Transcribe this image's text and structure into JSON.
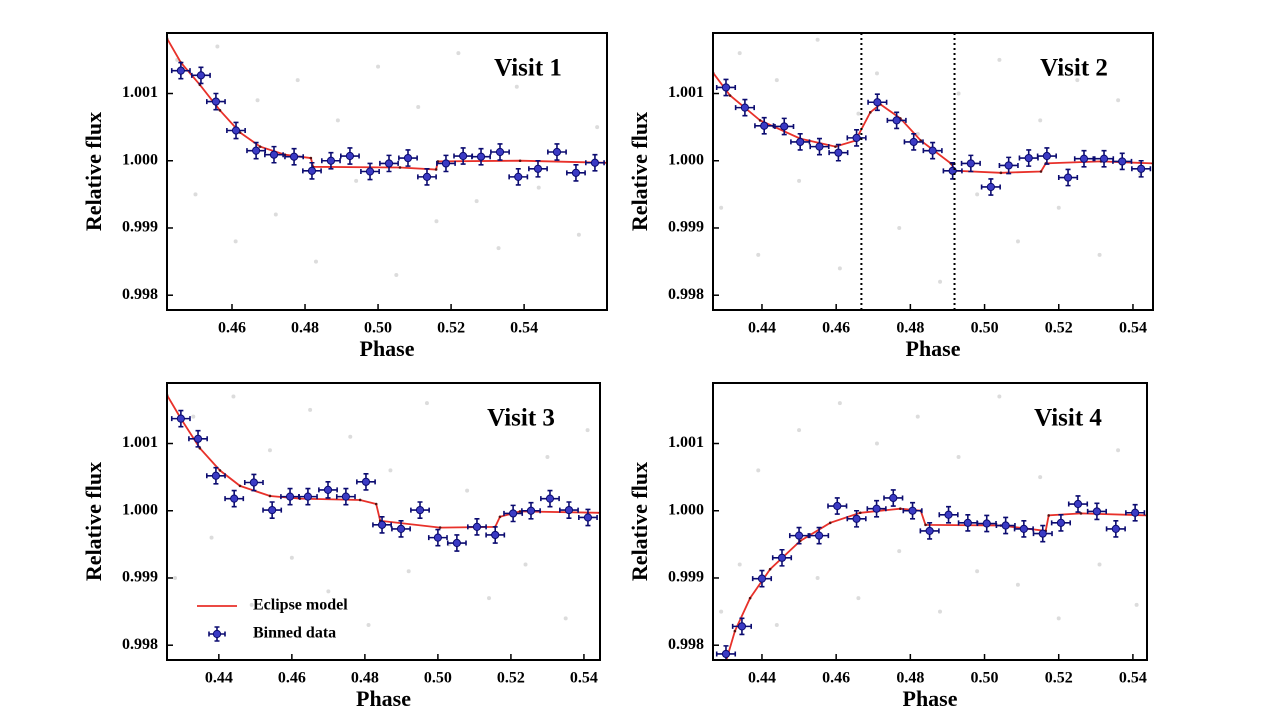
{
  "chart_data": [
    {
      "type": "errorbar",
      "title": "Visit 1",
      "xlabel": "Phase",
      "ylabel": "Relative flux",
      "xlim": [
        0.4422,
        0.5627
      ],
      "ylim": [
        0.99778,
        1.0019
      ],
      "xticks": [
        0.46,
        0.48,
        {
          "value": 0.5,
          "label": "0.50"
        },
        0.52,
        0.54
      ],
      "yticks": [
        0.998,
        0.999,
        {
          "value": 1.0,
          "label": "1.000"
        },
        1.001
      ],
      "raw": {
        "color": "#dcdcdc",
        "x": [
          0.445,
          0.45,
          0.456,
          0.461,
          0.467,
          0.472,
          0.478,
          0.483,
          0.489,
          0.494,
          0.5,
          0.505,
          0.511,
          0.516,
          0.522,
          0.527,
          0.533,
          0.538,
          0.544,
          0.549,
          0.555,
          0.56
        ],
        "values": [
          1.0015,
          0.9995,
          1.0017,
          0.9988,
          1.0009,
          0.9992,
          1.0012,
          0.9985,
          1.0006,
          0.9997,
          1.0014,
          0.9983,
          1.0008,
          0.9991,
          1.0016,
          0.9994,
          0.9987,
          1.0011,
          0.9996,
          1.0013,
          0.9989,
          1.0005
        ]
      },
      "series": [
        {
          "type": "line",
          "color": "#e8312a",
          "x": [
            0.4422,
            0.446,
            0.4512,
            0.4567,
            0.4622,
            0.4677,
            0.4745,
            0.4816,
            0.4822,
            0.506,
            0.5159,
            0.5164,
            0.5389,
            0.5627
          ],
          "values": [
            1.00182,
            1.00146,
            1.00113,
            1.00075,
            1.00042,
            1.00021,
            1.00009,
            1.00004,
            0.99991,
            0.9999,
            0.99987,
            0.99999,
            1.0,
            0.99997
          ]
        },
        {
          "type": "errorbar",
          "color": "#3b3bc4",
          "edge": "#0b0b70",
          "xerr": 0.0025,
          "yerr": 0.00012,
          "x": [
            0.446,
            0.4515,
            0.4556,
            0.4611,
            0.4666,
            0.4715,
            0.477,
            0.4819,
            0.4871,
            0.4923,
            0.4978,
            0.503,
            0.5082,
            0.5134,
            0.5186,
            0.5233,
            0.5282,
            0.5334,
            0.5384,
            0.5438,
            0.549,
            0.5542,
            0.5594
          ],
          "values": [
            1.00134,
            1.00127,
            1.00088,
            1.00045,
            1.00015,
            1.00009,
            1.00006,
            0.99985,
            1.0,
            1.00007,
            0.99984,
            0.99996,
            1.00004,
            0.99976,
            0.99996,
            1.00007,
            1.00006,
            1.00013,
            0.99976,
            0.99988,
            1.00013,
            0.99982,
            0.99997
          ]
        }
      ]
    },
    {
      "type": "errorbar",
      "title": "Visit 2",
      "xlabel": "Phase",
      "ylabel": "Relative flux",
      "xlim": [
        0.4268,
        0.5454
      ],
      "ylim": [
        0.99778,
        1.0019
      ],
      "xticks": [
        0.44,
        0.46,
        0.48,
        {
          "value": 0.5,
          "label": "0.50"
        },
        0.52,
        0.54
      ],
      "yticks": [
        0.998,
        0.999,
        {
          "value": 1.0,
          "label": "1.000"
        },
        1.001
      ],
      "vlines": [
        0.4668,
        0.4919
      ],
      "raw": {
        "color": "#dcdcdc",
        "x": [
          0.429,
          0.434,
          0.439,
          0.444,
          0.45,
          0.455,
          0.461,
          0.466,
          0.471,
          0.477,
          0.482,
          0.488,
          0.493,
          0.498,
          0.504,
          0.509,
          0.515,
          0.52,
          0.525,
          0.531,
          0.536,
          0.542
        ],
        "values": [
          0.9993,
          1.0016,
          0.9986,
          1.0012,
          0.9997,
          1.0018,
          0.9984,
          1.0007,
          1.0013,
          0.999,
          1.0004,
          0.9982,
          1.001,
          0.9995,
          1.0015,
          0.9988,
          1.0006,
          0.9993,
          1.0012,
          0.9986,
          1.0009,
          0.9998
        ]
      },
      "series": [
        {
          "type": "line",
          "color": "#e8312a",
          "x": [
            0.4268,
            0.4314,
            0.4395,
            0.4503,
            0.4598,
            0.4652,
            0.4692,
            0.4719,
            0.4773,
            0.4828,
            0.4909,
            0.4922,
            0.5044,
            0.5152,
            0.5165,
            0.5314,
            0.5454
          ],
          "values": [
            1.00131,
            1.00097,
            1.0006,
            1.00033,
            1.00021,
            1.0003,
            1.00072,
            1.00084,
            1.00063,
            1.0003,
            0.99996,
            0.99985,
            0.99982,
            0.99984,
            0.99996,
            0.99999,
            0.99996
          ]
        },
        {
          "type": "errorbar",
          "color": "#3b3bc4",
          "edge": "#0b0b70",
          "xerr": 0.0025,
          "yerr": 0.00012,
          "x": [
            0.4303,
            0.4354,
            0.4406,
            0.446,
            0.4503,
            0.4555,
            0.4606,
            0.4655,
            0.4711,
            0.4763,
            0.4809,
            0.486,
            0.4914,
            0.4963,
            0.5017,
            0.5065,
            0.5119,
            0.5168,
            0.5225,
            0.5268,
            0.5322,
            0.5371,
            0.5422
          ],
          "values": [
            1.00109,
            1.00079,
            1.00052,
            1.00051,
            1.00028,
            1.00021,
            1.00012,
            1.00034,
            1.00087,
            1.0006,
            1.00028,
            1.00015,
            0.99985,
            0.99996,
            0.99961,
            0.99993,
            1.00004,
            1.00007,
            0.99975,
            1.00003,
            1.00003,
            0.99999,
            0.99988
          ]
        }
      ]
    },
    {
      "type": "errorbar",
      "title": "Visit 3",
      "xlabel": "Phase",
      "ylabel": "Relative flux",
      "xlim": [
        0.4258,
        0.5444
      ],
      "ylim": [
        0.99778,
        1.0019
      ],
      "xticks": [
        0.44,
        0.46,
        0.48,
        {
          "value": 0.5,
          "label": "0.50"
        },
        0.52,
        0.54
      ],
      "yticks": [
        0.998,
        0.999,
        {
          "value": 1.0,
          "label": "1.000"
        },
        1.001
      ],
      "legend": "lower left",
      "raw": {
        "color": "#dcdcdc",
        "x": [
          0.428,
          0.433,
          0.438,
          0.444,
          0.449,
          0.454,
          0.46,
          0.465,
          0.47,
          0.476,
          0.481,
          0.487,
          0.492,
          0.497,
          0.503,
          0.508,
          0.514,
          0.519,
          0.524,
          0.53,
          0.535,
          0.541
        ],
        "values": [
          0.999,
          1.0014,
          0.9996,
          1.0017,
          0.9986,
          1.0009,
          0.9993,
          1.0015,
          0.9988,
          1.0011,
          0.9983,
          1.0006,
          0.9991,
          1.0016,
          0.9995,
          1.0003,
          0.9987,
          1.0013,
          0.9992,
          1.0008,
          0.9984,
          1.0012
        ]
      },
      "series": [
        {
          "name": "Eclipse model",
          "type": "line",
          "color": "#e8312a",
          "x": [
            0.4258,
            0.4296,
            0.4348,
            0.4403,
            0.4458,
            0.454,
            0.4622,
            0.4787,
            0.4831,
            0.4842,
            0.5006,
            0.5157,
            0.517,
            0.5225,
            0.5444
          ],
          "values": [
            1.00172,
            1.00137,
            1.00093,
            1.0006,
            1.00037,
            1.00022,
            1.00018,
            1.00016,
            1.0001,
            0.99985,
            0.99975,
            0.99976,
            0.99991,
            0.99999,
            0.99997
          ]
        },
        {
          "name": "Binned data",
          "type": "errorbar",
          "color": "#3b3bc4",
          "edge": "#0b0b70",
          "xerr": 0.0025,
          "yerr": 0.00012,
          "x": [
            0.4296,
            0.4343,
            0.4392,
            0.4442,
            0.4496,
            0.4546,
            0.4595,
            0.4644,
            0.4699,
            0.4748,
            0.4803,
            0.4847,
            0.4899,
            0.4951,
            0.5,
            0.5052,
            0.5107,
            0.5157,
            0.5206,
            0.5255,
            0.5307,
            0.5359,
            0.5411
          ],
          "values": [
            1.00137,
            1.00107,
            1.00052,
            1.00018,
            1.00042,
            1.00001,
            1.00021,
            1.00021,
            1.00031,
            1.00021,
            1.00043,
            0.99979,
            0.99973,
            1.00001,
            0.9996,
            0.99952,
            0.99976,
            0.99964,
            0.99996,
            1.0,
            1.00018,
            1.00001,
            0.9999
          ]
        }
      ]
    },
    {
      "type": "errorbar",
      "title": "Visit 4",
      "xlabel": "Phase",
      "ylabel": "Relative flux",
      "xlim": [
        0.4268,
        0.5438
      ],
      "ylim": [
        0.99778,
        1.0019
      ],
      "xticks": [
        0.44,
        0.46,
        0.48,
        {
          "value": 0.5,
          "label": "0.50"
        },
        0.52,
        0.54
      ],
      "yticks": [
        0.998,
        0.999,
        {
          "value": 1.0,
          "label": "1.000"
        },
        1.001
      ],
      "raw": {
        "color": "#dcdcdc",
        "x": [
          0.429,
          0.434,
          0.439,
          0.444,
          0.45,
          0.455,
          0.461,
          0.466,
          0.471,
          0.477,
          0.482,
          0.488,
          0.493,
          0.498,
          0.504,
          0.509,
          0.515,
          0.52,
          0.525,
          0.531,
          0.536,
          0.541
        ],
        "values": [
          0.9985,
          0.9992,
          1.0006,
          0.9983,
          1.0012,
          0.999,
          1.0016,
          0.9987,
          1.001,
          0.9994,
          1.0014,
          0.9985,
          1.0008,
          0.9991,
          1.0017,
          0.9989,
          1.0005,
          0.9984,
          1.0013,
          0.9992,
          1.0009,
          0.9986
        ]
      },
      "series": [
        {
          "type": "line",
          "color": "#e8312a",
          "x": [
            0.4303,
            0.4327,
            0.4368,
            0.4422,
            0.4503,
            0.4584,
            0.4665,
            0.4773,
            0.4828,
            0.4841,
            0.5044,
            0.5165,
            0.5173,
            0.526,
            0.5438
          ],
          "values": [
            0.99776,
            0.99821,
            0.9987,
            0.99913,
            0.99955,
            0.99982,
            0.99997,
            1.00003,
            1.0,
            0.99979,
            0.99978,
            0.9997,
            0.99993,
            0.99996,
            0.99993
          ]
        },
        {
          "type": "errorbar",
          "color": "#3b3bc4",
          "edge": "#0b0b70",
          "xerr": 0.0025,
          "yerr": 0.00012,
          "x": [
            0.4303,
            0.4346,
            0.44,
            0.4454,
            0.45,
            0.4554,
            0.4603,
            0.4655,
            0.4709,
            0.4754,
            0.4806,
            0.4852,
            0.4903,
            0.4955,
            0.5006,
            0.5057,
            0.5106,
            0.5157,
            0.5206,
            0.5252,
            0.5303,
            0.5354,
            0.5406
          ],
          "values": [
            0.99787,
            0.99828,
            0.99899,
            0.9993,
            0.99963,
            0.99963,
            1.00007,
            0.99988,
            1.00003,
            1.00019,
            1.0,
            0.9997,
            0.99994,
            0.99982,
            0.99981,
            0.99978,
            0.99973,
            0.99966,
            0.99982,
            1.0001,
            0.99999,
            0.99973,
            0.99997
          ]
        }
      ]
    }
  ]
}
